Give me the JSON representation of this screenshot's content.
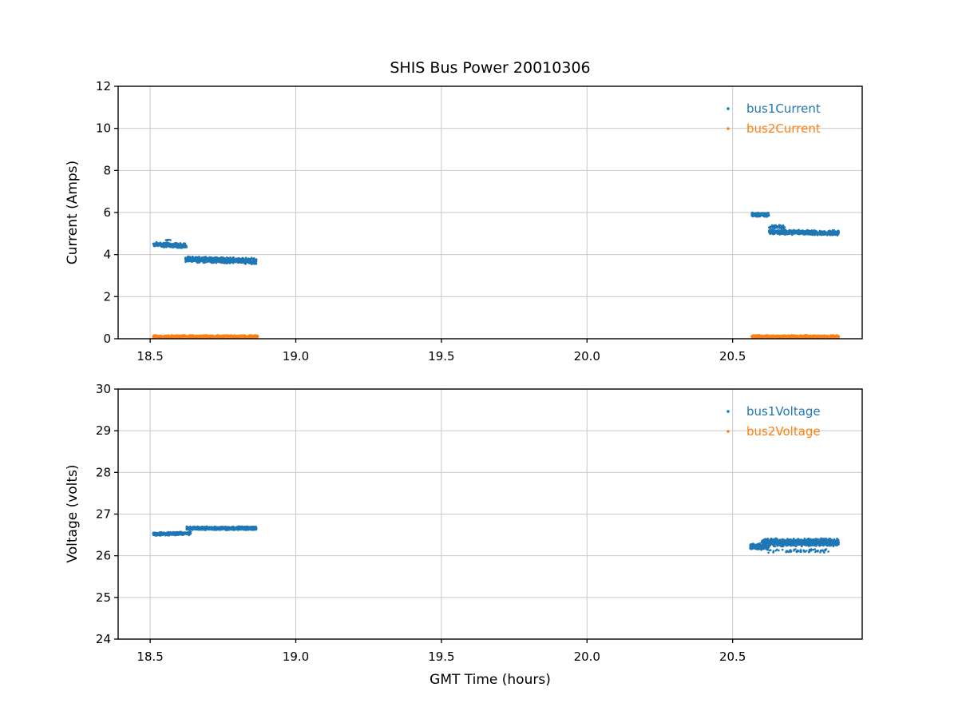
{
  "figure": {
    "background": "#ffffff",
    "colors": {
      "grid": "#c9c9c9",
      "axis": "#000000",
      "text": "#000000"
    }
  },
  "chart_data": [
    {
      "type": "scatter",
      "title": "SHIS Bus Power 20010306",
      "xlabel": "",
      "ylabel": "Current (Amps)",
      "xlim": [
        18.39,
        20.945
      ],
      "ylim": [
        0,
        12
      ],
      "xticks": [
        18.5,
        19.0,
        19.5,
        20.0,
        20.5
      ],
      "xtick_labels": [
        "18.5",
        "19.0",
        "19.5",
        "20.0",
        "20.5"
      ],
      "yticks": [
        0,
        2,
        4,
        6,
        8,
        10,
        12
      ],
      "ytick_labels": [
        "0",
        "2",
        "4",
        "6",
        "8",
        "10",
        "12"
      ],
      "grid": true,
      "marker_size": 1.3,
      "legend_position": "upper right",
      "series": [
        {
          "name": "bus1Current",
          "color": "#1f77b4",
          "segments": [
            {
              "x_start": 18.51,
              "x_end": 18.625,
              "y_mean": 4.45,
              "y_spread": 0.13,
              "y_drift": -0.06,
              "points": 260
            },
            {
              "x_start": 18.55,
              "x_end": 18.57,
              "y_mean": 4.69,
              "y_spread": 0.03,
              "y_drift": 0,
              "points": 8
            },
            {
              "x_start": 18.62,
              "x_end": 18.865,
              "y_mean": 3.74,
              "y_spread": 0.16,
              "y_drift": -0.1,
              "points": 720
            },
            {
              "x_start": 20.565,
              "x_end": 20.625,
              "y_mean": 5.9,
              "y_spread": 0.11,
              "y_drift": 0,
              "points": 190
            },
            {
              "x_start": 20.625,
              "x_end": 20.68,
              "y_mean": 5.32,
              "y_spread": 0.1,
              "y_drift": 0,
              "points": 70
            },
            {
              "x_start": 20.625,
              "x_end": 20.865,
              "y_mean": 5.05,
              "y_spread": 0.13,
              "y_drift": -0.04,
              "points": 680
            }
          ]
        },
        {
          "name": "bus2Current",
          "color": "#ff7f0e",
          "segments": [
            {
              "x_start": 18.51,
              "x_end": 18.87,
              "y_mean": 0.1,
              "y_spread": 0.08,
              "y_drift": 0,
              "points": 900
            },
            {
              "x_start": 20.565,
              "x_end": 20.865,
              "y_mean": 0.1,
              "y_spread": 0.08,
              "y_drift": 0,
              "points": 800
            }
          ]
        }
      ]
    },
    {
      "type": "scatter",
      "title": "",
      "xlabel": "GMT Time (hours)",
      "ylabel": "Voltage (volts)",
      "xlim": [
        18.39,
        20.945
      ],
      "ylim": [
        24,
        30
      ],
      "xticks": [
        18.5,
        19.0,
        19.5,
        20.0,
        20.5
      ],
      "xtick_labels": [
        "18.5",
        "19.0",
        "19.5",
        "20.0",
        "20.5"
      ],
      "yticks": [
        24,
        25,
        26,
        27,
        28,
        29,
        30
      ],
      "ytick_labels": [
        "24",
        "25",
        "26",
        "27",
        "28",
        "29",
        "30"
      ],
      "grid": true,
      "marker_size": 1.3,
      "legend_position": "upper right",
      "series": [
        {
          "name": "bus1Voltage",
          "color": "#1f77b4",
          "segments": [
            {
              "x_start": 18.51,
              "x_end": 18.64,
              "y_mean": 26.53,
              "y_spread": 0.05,
              "y_drift": 0.02,
              "points": 280
            },
            {
              "x_start": 18.625,
              "x_end": 18.865,
              "y_mean": 26.66,
              "y_spread": 0.05,
              "y_drift": 0,
              "points": 720
            },
            {
              "x_start": 20.56,
              "x_end": 20.625,
              "y_mean": 26.22,
              "y_spread": 0.08,
              "y_drift": 0,
              "points": 260
            },
            {
              "x_start": 20.6,
              "x_end": 20.865,
              "y_mean": 26.32,
              "y_spread": 0.1,
              "y_drift": 0,
              "points": 950
            },
            {
              "x_start": 20.62,
              "x_end": 20.83,
              "y_mean": 26.12,
              "y_spread": 0.05,
              "y_drift": 0,
              "points": 60
            }
          ]
        },
        {
          "name": "bus2Voltage",
          "color": "#ff7f0e",
          "segments": []
        }
      ]
    }
  ]
}
